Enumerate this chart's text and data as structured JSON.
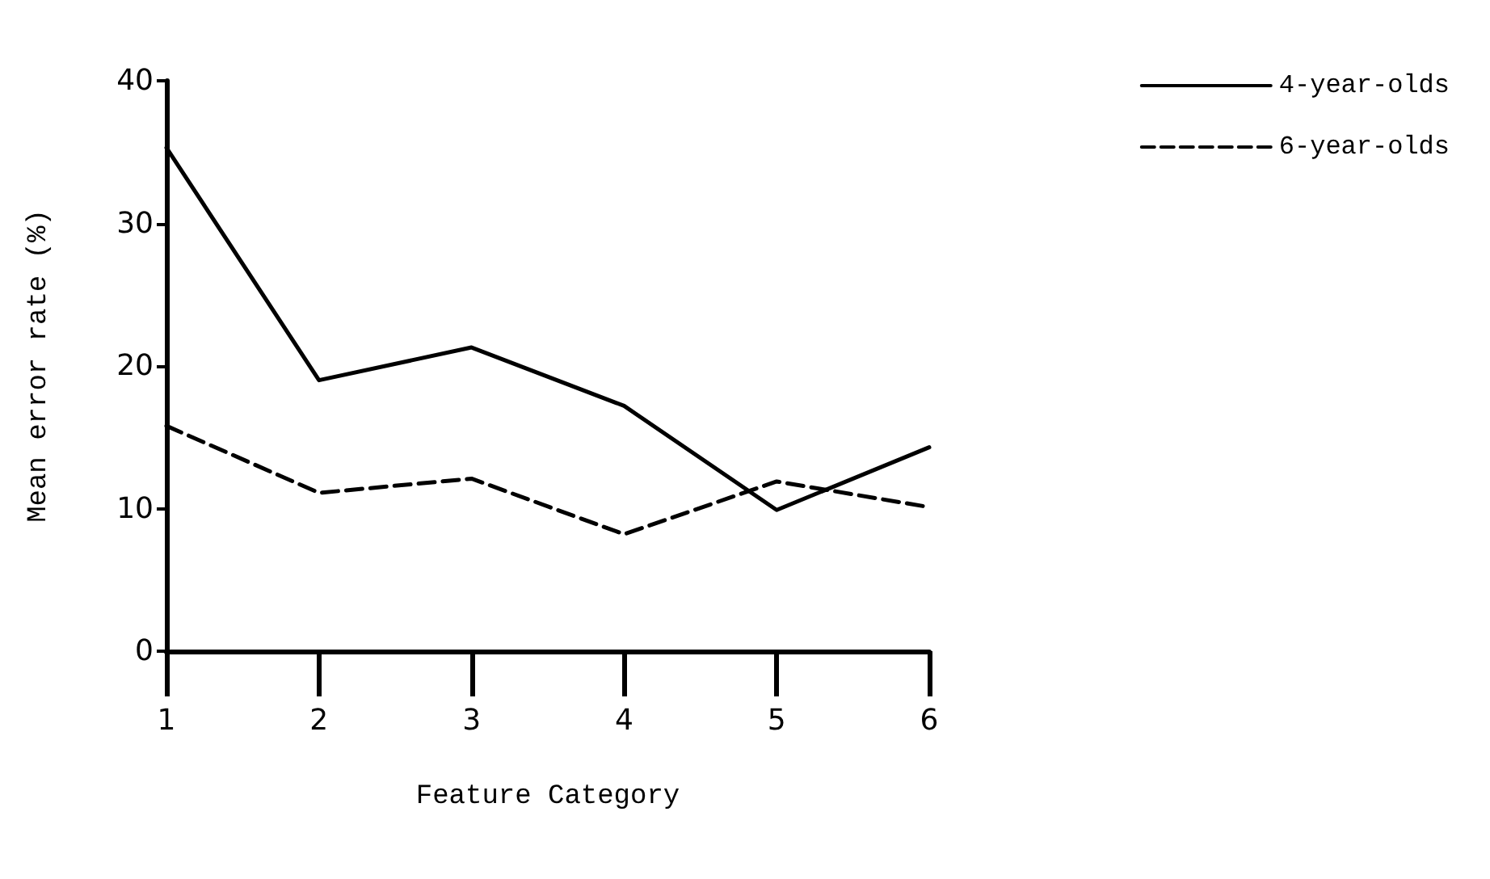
{
  "chart_data": {
    "type": "line",
    "xlabel": "Feature Category",
    "ylabel": "Mean error rate (%)",
    "x": [
      1,
      2,
      3,
      4,
      5,
      6
    ],
    "xlim": [
      1,
      6
    ],
    "xticks": [
      1,
      2,
      3,
      4,
      5,
      6
    ],
    "ylim": [
      0,
      40
    ],
    "yticks": [
      0,
      10,
      20,
      30,
      40
    ],
    "series": [
      {
        "name": "4-year-olds",
        "color": "#000000",
        "line_style": "solid",
        "values": [
          35.3,
          19.0,
          21.3,
          17.2,
          9.9,
          14.3
        ]
      },
      {
        "name": "6-year-olds",
        "color": "#000000",
        "line_style": "dashed",
        "values": [
          15.8,
          11.1,
          12.1,
          8.2,
          11.9,
          10.1
        ]
      }
    ],
    "marker": "none",
    "grid": false,
    "legend": "top right"
  }
}
